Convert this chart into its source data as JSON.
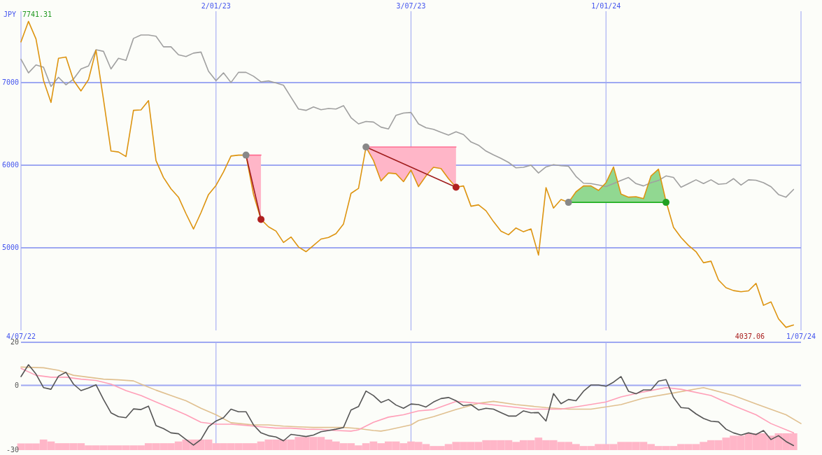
{
  "chart_data": [
    {
      "type": "line",
      "ylabel": "JPY",
      "annotations": [
        "7741.31",
        "4037.06"
      ],
      "xlim": [
        "2022-07-04",
        "2024-07-01"
      ],
      "ylim": [
        4000,
        8000
      ],
      "xticks": [
        {
          "value": "2022-07-04",
          "label": "4/07/22"
        },
        {
          "value": "2024-07-01",
          "label": "1/07/24"
        }
      ],
      "x2lim": [
        "2022-07-04",
        "2024-07-01"
      ],
      "x2ticks": [
        {
          "value": "2023-01-02",
          "label": "2/01/23"
        },
        {
          "value": "2023-07-03",
          "label": "3/07/23"
        },
        {
          "value": "2024-01-01",
          "label": "1/01/24"
        }
      ],
      "yticks": [
        5000,
        6000,
        7000
      ],
      "grid": true,
      "x": [
        "2022-07-04",
        "2022-07-11",
        "2022-07-18",
        "2022-07-25",
        "2022-08-01",
        "2022-08-08",
        "2022-08-15",
        "2022-08-22",
        "2022-08-29",
        "2022-09-05",
        "2022-09-12",
        "2022-09-19",
        "2022-09-26",
        "2022-10-03",
        "2022-10-10",
        "2022-10-17",
        "2022-10-24",
        "2022-10-31",
        "2022-11-07",
        "2022-11-14",
        "2022-11-21",
        "2022-11-28",
        "2022-12-05",
        "2022-12-12",
        "2022-12-19",
        "2022-12-26",
        "2023-01-02",
        "2023-01-09",
        "2023-01-16",
        "2023-01-23",
        "2023-01-30",
        "2023-02-06",
        "2023-02-13",
        "2023-02-20",
        "2023-02-27",
        "2023-03-06",
        "2023-03-13",
        "2023-03-20",
        "2023-03-27",
        "2023-04-03",
        "2023-04-10",
        "2023-04-17",
        "2023-04-24",
        "2023-05-01",
        "2023-05-08",
        "2023-05-15",
        "2023-05-22",
        "2023-05-29",
        "2023-06-05",
        "2023-06-12",
        "2023-06-19",
        "2023-06-26",
        "2023-07-03",
        "2023-07-10",
        "2023-07-17",
        "2023-07-24",
        "2023-07-31",
        "2023-08-07",
        "2023-08-14",
        "2023-08-21",
        "2023-08-28",
        "2023-09-04",
        "2023-09-11",
        "2023-09-18",
        "2023-09-25",
        "2023-10-02",
        "2023-10-09",
        "2023-10-16",
        "2023-10-23",
        "2023-10-30",
        "2023-11-06",
        "2023-11-13",
        "2023-11-20",
        "2023-11-27",
        "2023-12-04",
        "2023-12-11",
        "2023-12-18",
        "2023-12-25",
        "2024-01-01",
        "2024-01-08",
        "2024-01-15",
        "2024-01-22",
        "2024-01-29",
        "2024-02-05",
        "2024-02-12",
        "2024-02-19",
        "2024-02-26",
        "2024-03-04",
        "2024-03-11",
        "2024-03-18",
        "2024-03-25",
        "2024-04-01",
        "2024-04-08",
        "2024-04-15",
        "2024-04-22",
        "2024-04-29",
        "2024-05-06",
        "2024-05-13",
        "2024-05-20",
        "2024-05-27",
        "2024-06-03",
        "2024-06-10",
        "2024-06-17",
        "2024-06-24"
      ],
      "series": [
        {
          "color": "#ff6d91",
          "x": [
            "2023-01-30",
            "2023-02-06",
            "2023-02-13"
          ],
          "values": [
            6122,
            6122,
            6122
          ],
          "lower": [
            6122,
            5645,
            5344
          ],
          "upper": [
            6122,
            6122,
            6122
          ]
        },
        {
          "color": "#ff6d91",
          "x": [
            "2023-05-22",
            "2023-05-29",
            "2023-06-05",
            "2023-06-12",
            "2023-06-19",
            "2023-06-26",
            "2023-07-03",
            "2023-07-10",
            "2023-07-17",
            "2023-07-24",
            "2023-07-31",
            "2023-08-07",
            "2023-08-14"
          ],
          "values": [
            6220,
            6220,
            6220,
            6220,
            6220,
            6220,
            6220,
            6220,
            6220,
            6220,
            6220,
            6220,
            6220
          ],
          "lower": [
            6220,
            6056,
            5810,
            5906,
            5897,
            5801,
            5941,
            5741,
            5870,
            5974,
            5960,
            5837,
            5733
          ],
          "upper": [
            6220,
            6220,
            6220,
            6220,
            6220,
            6220,
            6220,
            6220,
            6220,
            6220,
            6220,
            6220,
            6220
          ]
        },
        {
          "color": "#a0a0a0",
          "values": [
            7283,
            7118,
            7214,
            7187,
            6954,
            7064,
            6973,
            7042,
            7165,
            7201,
            7398,
            7378,
            7165,
            7294,
            7269,
            7535,
            7576,
            7576,
            7562,
            7433,
            7433,
            7337,
            7316,
            7357,
            7370,
            7138,
            7023,
            7118,
            7001,
            7124,
            7124,
            7077,
            7009,
            7020,
            6995,
            6968,
            6823,
            6680,
            6664,
            6705,
            6672,
            6686,
            6680,
            6721,
            6576,
            6500,
            6530,
            6522,
            6461,
            6439,
            6604,
            6631,
            6639,
            6500,
            6453,
            6434,
            6398,
            6365,
            6404,
            6371,
            6281,
            6242,
            6171,
            6125,
            6083,
            6034,
            5968,
            5974,
            6001,
            5906,
            5979,
            6007,
            5993,
            5988,
            5864,
            5782,
            5777,
            5760,
            5741,
            5777,
            5815,
            5851,
            5777,
            5749,
            5788,
            5815,
            5870,
            5851,
            5733,
            5777,
            5823,
            5777,
            5823,
            5769,
            5777,
            5837,
            5760,
            5823,
            5818,
            5788,
            5739,
            5645,
            5613,
            5706
          ]
        },
        {
          "color": "#dd9410",
          "values": [
            7493,
            7741,
            7529,
            7028,
            6760,
            7294,
            7310,
            7028,
            6899,
            7036,
            7392,
            6795,
            6171,
            6160,
            6105,
            6664,
            6669,
            6782,
            6056,
            5851,
            5714,
            5613,
            5413,
            5227,
            5426,
            5645,
            5755,
            5919,
            6111,
            6122,
            6122,
            5645,
            5344,
            5254,
            5202,
            5065,
            5131,
            5010,
            4953,
            5029,
            5106,
            5125,
            5172,
            5289,
            5659,
            5719,
            6220,
            6056,
            5810,
            5906,
            5897,
            5801,
            5941,
            5741,
            5870,
            5974,
            5960,
            5837,
            5733,
            5749,
            5503,
            5520,
            5448,
            5317,
            5202,
            5158,
            5240,
            5194,
            5229,
            4912,
            5728,
            5481,
            5585,
            5550,
            5678,
            5749,
            5749,
            5695,
            5788,
            5979,
            5651,
            5613,
            5618,
            5596,
            5870,
            5952,
            5563,
            5248,
            5125,
            5029,
            4953,
            4819,
            4838,
            4610,
            4517,
            4482,
            4468,
            4479,
            4569,
            4304,
            4345,
            4140,
            4037,
            4066
          ]
        },
        {
          "color": "#a01c1c",
          "x": [
            "2023-01-30",
            "2023-02-13"
          ],
          "values": [
            6122,
            5344
          ]
        },
        {
          "color": "#a01c1c",
          "x": [
            "2023-05-22",
            "2023-08-14"
          ],
          "values": [
            6220,
            5733
          ]
        },
        {
          "color": "#22b022",
          "x": [
            "2023-11-27",
            "2023-12-04",
            "2023-12-11",
            "2023-12-18",
            "2023-12-25",
            "2024-01-01",
            "2024-01-08",
            "2024-01-15",
            "2024-01-22",
            "2024-01-29",
            "2024-02-05",
            "2024-02-12",
            "2024-02-19",
            "2024-02-26"
          ],
          "values": [
            5550,
            5550,
            5550,
            5550,
            5550,
            5550,
            5550,
            5550,
            5550,
            5550,
            5550,
            5550,
            5550,
            5550
          ],
          "lower": [
            5550,
            5550,
            5550,
            5550,
            5550,
            5550,
            5550,
            5550,
            5550,
            5550,
            5550,
            5550,
            5550,
            5550
          ],
          "upper": [
            5550,
            5678,
            5749,
            5749,
            5695,
            5788,
            5979,
            5651,
            5613,
            5618,
            5596,
            5870,
            5952,
            5563
          ]
        },
        {
          "type": "scatter",
          "marker": "circle",
          "color": "#888888",
          "x": [
            "2023-01-30",
            "2023-05-22",
            "2023-11-27"
          ],
          "values": [
            6122,
            6220,
            5550
          ]
        },
        {
          "type": "scatter",
          "marker": "circle",
          "color": "#b02020",
          "x": [
            "2023-02-13",
            "2023-08-14"
          ],
          "values": [
            5344,
            5733
          ]
        },
        {
          "type": "scatter",
          "marker": "circle",
          "color": "#22a022",
          "x": [
            "2024-02-26"
          ],
          "values": [
            5550
          ]
        }
      ]
    },
    {
      "type": "line",
      "tick_labels": "y",
      "xlim": [
        "2022-07-04",
        "2024-07-01"
      ],
      "ylim": [
        -30,
        20
      ],
      "yticks": [
        -30,
        0,
        20
      ],
      "ref_lines": [
        {
          "axis": "y",
          "value": 20
        },
        {
          "axis": "y",
          "value": 0
        },
        {
          "axis": "x",
          "value": "2023-01-02"
        },
        {
          "axis": "x",
          "value": "2023-07-03"
        },
        {
          "axis": "x",
          "value": "2024-01-01"
        }
      ],
      "x": [
        "2022-07-04",
        "2022-07-11",
        "2022-07-18",
        "2022-07-25",
        "2022-08-01",
        "2022-08-08",
        "2022-08-15",
        "2022-08-22",
        "2022-08-29",
        "2022-09-05",
        "2022-09-12",
        "2022-09-19",
        "2022-09-26",
        "2022-10-03",
        "2022-10-10",
        "2022-10-17",
        "2022-10-24",
        "2022-10-31",
        "2022-11-07",
        "2022-11-14",
        "2022-11-21",
        "2022-11-28",
        "2022-12-05",
        "2022-12-12",
        "2022-12-19",
        "2022-12-26",
        "2023-01-02",
        "2023-01-09",
        "2023-01-16",
        "2023-01-23",
        "2023-01-30",
        "2023-02-06",
        "2023-02-13",
        "2023-02-20",
        "2023-02-27",
        "2023-03-06",
        "2023-03-13",
        "2023-03-20",
        "2023-03-27",
        "2023-04-03",
        "2023-04-10",
        "2023-04-17",
        "2023-04-24",
        "2023-05-01",
        "2023-05-08",
        "2023-05-15",
        "2023-05-22",
        "2023-05-29",
        "2023-06-05",
        "2023-06-12",
        "2023-06-19",
        "2023-06-26",
        "2023-07-03",
        "2023-07-10",
        "2023-07-17",
        "2023-07-24",
        "2023-07-31",
        "2023-08-07",
        "2023-08-14",
        "2023-08-21",
        "2023-08-28",
        "2023-09-04",
        "2023-09-11",
        "2023-09-18",
        "2023-09-25",
        "2023-10-02",
        "2023-10-09",
        "2023-10-16",
        "2023-10-23",
        "2023-10-30",
        "2023-11-06",
        "2023-11-13",
        "2023-11-20",
        "2023-11-27",
        "2023-12-04",
        "2023-12-11",
        "2023-12-18",
        "2023-12-25",
        "2024-01-01",
        "2024-01-08",
        "2024-01-15",
        "2024-01-22",
        "2024-01-29",
        "2024-02-05",
        "2024-02-12",
        "2024-02-19",
        "2024-02-26",
        "2024-03-04",
        "2024-03-11",
        "2024-03-18",
        "2024-03-25",
        "2024-04-01",
        "2024-04-08",
        "2024-04-15",
        "2024-04-22",
        "2024-04-29",
        "2024-05-06",
        "2024-05-13",
        "2024-05-20",
        "2024-05-27",
        "2024-06-03",
        "2024-06-10",
        "2024-06-17",
        "2024-06-24"
      ],
      "series": [
        {
          "type": "bar",
          "color": "#ffb6c8",
          "values": [
            3.1,
            3.1,
            3.1,
            4.9,
            4.0,
            3.2,
            3.2,
            3.2,
            3.2,
            2.2,
            2.2,
            2.2,
            2.2,
            2.2,
            2.2,
            2.2,
            2.2,
            3.2,
            3.2,
            3.2,
            3.2,
            4.0,
            4.9,
            4.9,
            4.9,
            4.9,
            3.2,
            3.2,
            3.2,
            3.2,
            3.2,
            3.2,
            4.0,
            4.9,
            4.9,
            4.9,
            4.9,
            6.1,
            6.1,
            6.1,
            6.1,
            4.9,
            4.0,
            3.2,
            3.2,
            2.2,
            3.2,
            4.0,
            3.2,
            4.0,
            4.0,
            3.2,
            4.0,
            3.8,
            2.8,
            1.9,
            1.9,
            2.8,
            3.8,
            3.8,
            3.8,
            3.8,
            4.6,
            4.6,
            4.6,
            4.6,
            3.8,
            4.6,
            4.6,
            5.8,
            4.6,
            4.6,
            3.8,
            3.8,
            2.8,
            1.9,
            1.9,
            2.8,
            2.8,
            2.8,
            3.8,
            3.8,
            3.8,
            3.8,
            2.8,
            1.9,
            1.9,
            1.9,
            2.8,
            2.8,
            2.8,
            3.8,
            4.6,
            4.6,
            5.8,
            6.7,
            6.7,
            7.8,
            7.8,
            7.8,
            6.7,
            7.8,
            7.8,
            7.8
          ],
          "base": [
            -30,
            -30,
            -30,
            -30,
            -30,
            -30,
            -30,
            -30,
            -30,
            -30,
            -30,
            -30,
            -30,
            -30,
            -30,
            -30,
            -30,
            -30,
            -30,
            -30,
            -30,
            -30,
            -30,
            -30,
            -30,
            -30,
            -30,
            -30,
            -30,
            -30,
            -30,
            -30,
            -30,
            -30,
            -30,
            -30,
            -30,
            -30,
            -30,
            -30,
            -30,
            -30,
            -30,
            -30,
            -30,
            -30,
            -30,
            -30,
            -30,
            -30,
            -30,
            -30,
            -30,
            -30,
            -30,
            -30,
            -30,
            -30,
            -30,
            -30,
            -30,
            -30,
            -30,
            -30,
            -30,
            -30,
            -30,
            -30,
            -30,
            -30,
            -30,
            -30,
            -30,
            -30,
            -30,
            -30,
            -30,
            -30,
            -30,
            -30,
            -30,
            -30,
            -30,
            -30,
            -30,
            -30,
            -30,
            -30,
            -30,
            -30,
            -30,
            -30,
            -30,
            -30,
            -30,
            -30,
            -30,
            -30,
            -30,
            -30,
            -30,
            -30,
            -30,
            -30
          ]
        },
        {
          "color": "#e0c090",
          "x": [
            "2022-07-04",
            "2022-07-25",
            "2022-08-08",
            "2022-08-22",
            "2022-09-05",
            "2022-09-19",
            "2022-10-03",
            "2022-10-17",
            "2022-10-24",
            "2022-11-07",
            "2022-11-21",
            "2022-12-05",
            "2022-12-19",
            "2023-01-02",
            "2023-01-16",
            "2023-02-06",
            "2023-02-20",
            "2023-03-06",
            "2023-03-20",
            "2023-04-03",
            "2023-04-17",
            "2023-05-01",
            "2023-05-15",
            "2023-05-29",
            "2023-06-05",
            "2023-06-12",
            "2023-07-03",
            "2023-07-10",
            "2023-07-24",
            "2023-08-14",
            "2023-09-04",
            "2023-09-18",
            "2023-10-09",
            "2023-11-06",
            "2023-11-27",
            "2023-12-18",
            "2024-01-15",
            "2024-02-05",
            "2024-03-04",
            "2024-04-01",
            "2024-04-29",
            "2024-05-20",
            "2024-06-17",
            "2024-07-01"
          ],
          "values": [
            8.5,
            8.2,
            7.0,
            4.7,
            3.8,
            2.9,
            2.6,
            2.1,
            0.6,
            -2.2,
            -4.7,
            -7.1,
            -10.6,
            -13.6,
            -17.3,
            -18.3,
            -18.3,
            -18.9,
            -19.2,
            -19.5,
            -19.5,
            -19.5,
            -20.0,
            -20.9,
            -21.2,
            -20.6,
            -18.3,
            -16.3,
            -14.5,
            -11.2,
            -8.3,
            -7.4,
            -8.9,
            -10.3,
            -11.0,
            -11.0,
            -8.9,
            -5.9,
            -3.5,
            -1.0,
            -4.7,
            -8.6,
            -13.6,
            -17.7
          ]
        },
        {
          "color": "#ff9fb8",
          "x": [
            "2022-07-04",
            "2022-07-18",
            "2022-08-01",
            "2022-08-15",
            "2022-08-29",
            "2022-09-12",
            "2022-09-26",
            "2022-10-10",
            "2022-10-24",
            "2022-11-07",
            "2022-11-21",
            "2022-12-05",
            "2022-12-19",
            "2023-01-02",
            "2023-01-16",
            "2023-01-30",
            "2023-02-13",
            "2023-02-27",
            "2023-03-13",
            "2023-03-27",
            "2023-04-10",
            "2023-04-24",
            "2023-05-08",
            "2023-05-15",
            "2023-05-29",
            "2023-06-12",
            "2023-06-26",
            "2023-07-10",
            "2023-07-24",
            "2023-08-14",
            "2023-09-04",
            "2023-10-02",
            "2023-10-23",
            "2023-11-20",
            "2023-12-11",
            "2024-01-01",
            "2024-01-15",
            "2024-02-05",
            "2024-02-26",
            "2024-03-11",
            "2024-04-08",
            "2024-04-29",
            "2024-05-20",
            "2024-06-03",
            "2024-06-24"
          ],
          "values": [
            7.9,
            4.7,
            3.8,
            3.8,
            2.9,
            2.3,
            0.6,
            -2.4,
            -4.7,
            -7.7,
            -10.6,
            -13.6,
            -17.1,
            -18.0,
            -18.0,
            -18.5,
            -19.2,
            -19.8,
            -19.8,
            -20.3,
            -20.4,
            -20.9,
            -21.2,
            -20.6,
            -17.1,
            -14.7,
            -13.6,
            -11.8,
            -11.2,
            -7.4,
            -8.3,
            -9.8,
            -11.0,
            -11.0,
            -9.4,
            -7.7,
            -5.3,
            -3.0,
            -1.0,
            -1.8,
            -4.7,
            -9.4,
            -13.6,
            -17.7,
            -22.0
          ]
        },
        {
          "color": "#555555",
          "values": [
            4.1,
            9.6,
            5.3,
            -1.0,
            -1.8,
            4.3,
            6.1,
            0.6,
            -2.4,
            -1.2,
            0.3,
            -6.5,
            -12.7,
            -14.5,
            -15.0,
            -10.9,
            -11.2,
            -9.6,
            -18.6,
            -20.0,
            -22.0,
            -22.4,
            -25.1,
            -27.7,
            -25.1,
            -19.2,
            -16.5,
            -15.0,
            -11.0,
            -12.2,
            -12.2,
            -18.3,
            -22.0,
            -23.3,
            -23.9,
            -25.7,
            -22.7,
            -23.2,
            -23.7,
            -23.0,
            -21.5,
            -20.9,
            -20.3,
            -19.5,
            -11.4,
            -9.8,
            -2.6,
            -4.7,
            -7.9,
            -6.5,
            -9.1,
            -10.6,
            -8.6,
            -8.9,
            -10.0,
            -7.7,
            -6.1,
            -5.6,
            -7.1,
            -9.4,
            -8.9,
            -11.4,
            -10.6,
            -11.0,
            -12.6,
            -14.2,
            -14.2,
            -11.8,
            -12.7,
            -12.6,
            -16.5,
            -3.8,
            -8.5,
            -6.5,
            -7.1,
            -2.7,
            0.2,
            0.2,
            -0.4,
            1.5,
            4.1,
            -2.7,
            -3.9,
            -2.1,
            -2.1,
            2.0,
            2.7,
            -5.6,
            -10.3,
            -10.6,
            -13.2,
            -15.3,
            -16.6,
            -16.9,
            -20.3,
            -22.0,
            -23.0,
            -22.0,
            -22.8,
            -20.9,
            -25.1,
            -23.3,
            -26.0,
            -27.9
          ]
        }
      ]
    }
  ]
}
